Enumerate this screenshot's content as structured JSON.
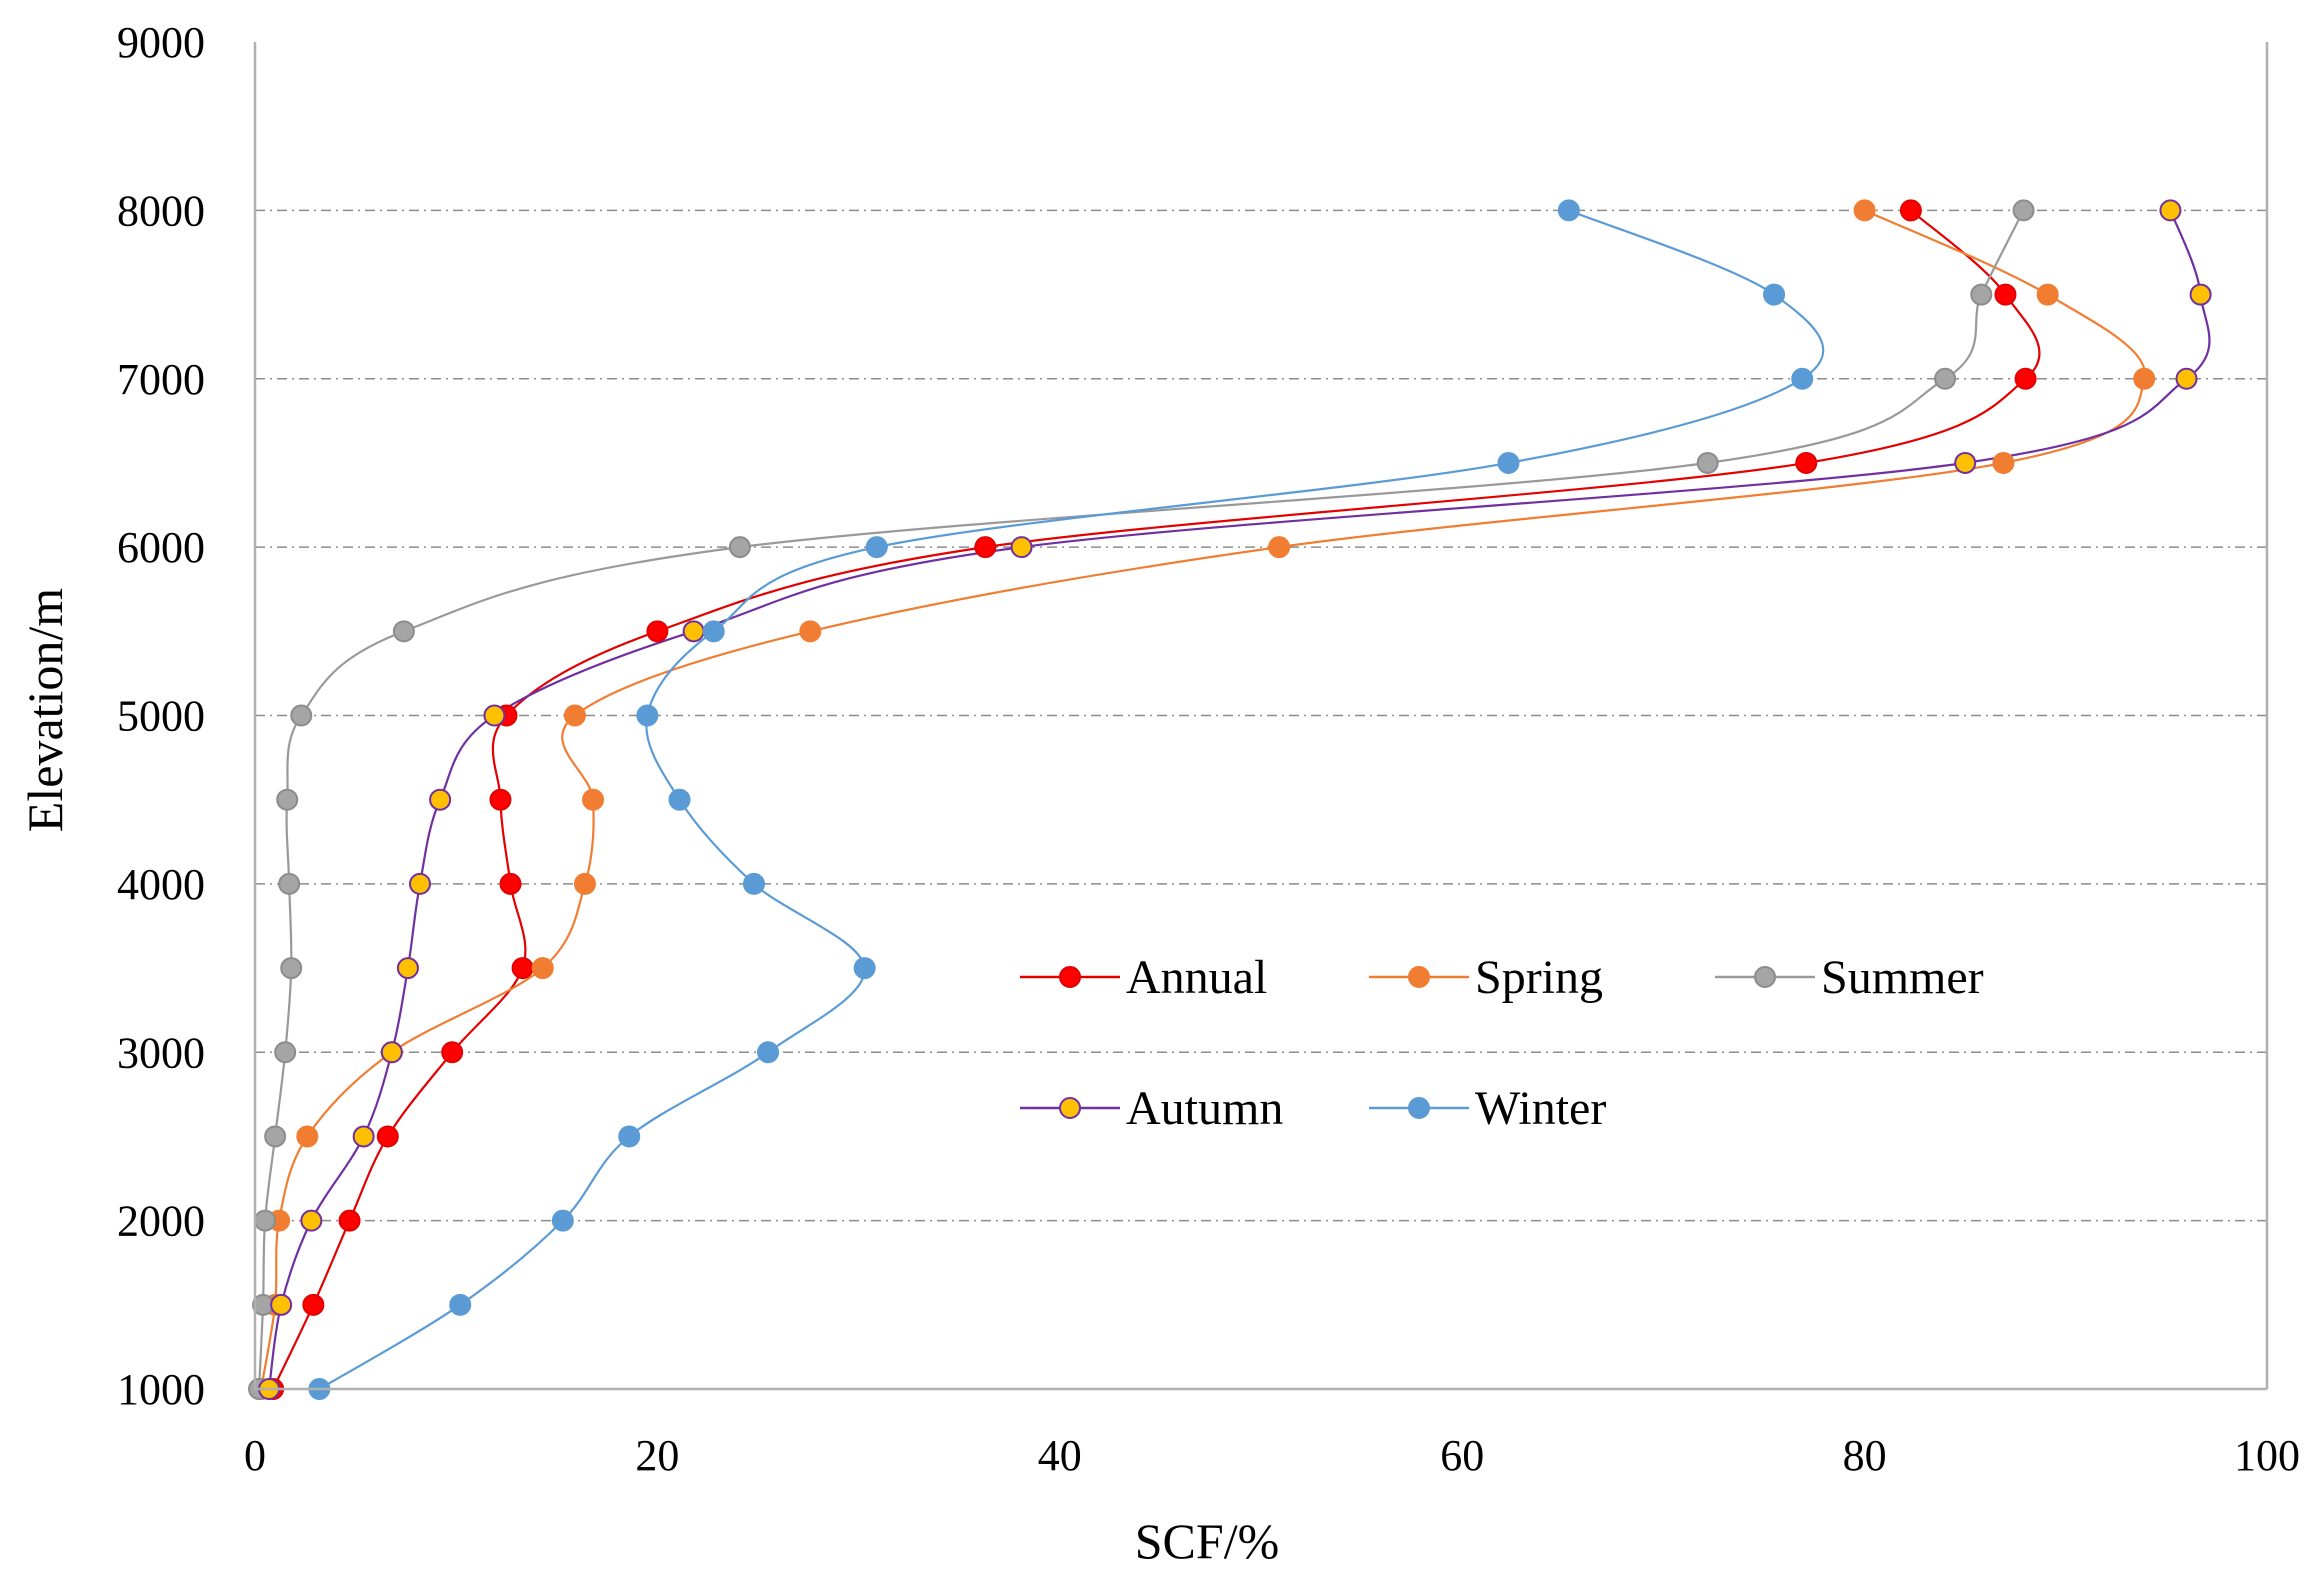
{
  "chart_data": {
    "type": "line",
    "title": "",
    "xlabel": "SCF/%",
    "ylabel": "Elevation/m",
    "xlim": [
      0,
      100
    ],
    "ylim": [
      1000,
      9000
    ],
    "xticks": [
      0,
      20,
      40,
      60,
      80,
      100
    ],
    "yticks": [
      1000,
      2000,
      3000,
      4000,
      5000,
      6000,
      7000,
      8000,
      9000
    ],
    "grid": "horizontal dashed",
    "legend_position": "center-right",
    "elevations": [
      1000,
      1500,
      2000,
      2500,
      3000,
      3500,
      4000,
      4500,
      5000,
      5500,
      6000,
      6500,
      7000,
      7500,
      8000
    ],
    "series": [
      {
        "name": "Annual",
        "line_color": "#e30000",
        "marker_fill": "#ff0000",
        "marker_stroke": "#e30000",
        "values": [
          0.9,
          2.9,
          4.7,
          6.6,
          9.8,
          13.3,
          12.7,
          12.2,
          12.5,
          20.0,
          36.3,
          77.1,
          88.0,
          87.0,
          82.3
        ]
      },
      {
        "name": "Spring",
        "line_color": "#f07d32",
        "marker_fill": "#f07d32",
        "marker_stroke": "#f07d32",
        "values": [
          0.3,
          1.0,
          1.2,
          2.6,
          6.8,
          14.3,
          16.4,
          16.8,
          15.9,
          27.6,
          50.9,
          86.9,
          93.9,
          89.1,
          80.0
        ]
      },
      {
        "name": "Summer",
        "line_color": "#999999",
        "marker_fill": "#a5a5a5",
        "marker_stroke": "#8c8c8c",
        "values": [
          0.2,
          0.4,
          0.5,
          1.0,
          1.5,
          1.8,
          1.7,
          1.6,
          2.3,
          7.4,
          24.1,
          72.2,
          84.0,
          85.8,
          87.9
        ]
      },
      {
        "name": "Autumn",
        "line_color": "#7030a0",
        "marker_fill": "#ffc000",
        "marker_stroke": "#7030a0",
        "values": [
          0.7,
          1.3,
          2.8,
          5.4,
          6.8,
          7.6,
          8.2,
          9.2,
          11.9,
          21.8,
          38.1,
          85.0,
          96.0,
          96.7,
          95.2
        ]
      },
      {
        "name": "Winter",
        "line_color": "#5b9bd5",
        "marker_fill": "#5b9bd5",
        "marker_stroke": "#5b9bd5",
        "values": [
          3.2,
          10.2,
          15.3,
          18.6,
          25.5,
          30.3,
          24.8,
          21.1,
          19.5,
          22.8,
          30.9,
          62.3,
          76.9,
          75.5,
          65.3
        ]
      }
    ]
  }
}
